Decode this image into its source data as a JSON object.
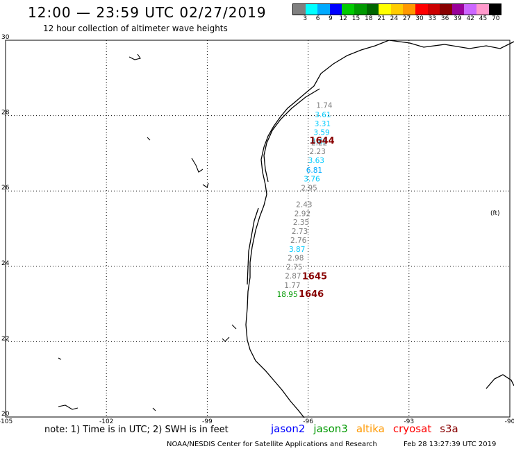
{
  "header": {
    "title": "12:00 — 23:59 UTC 02/27/2019",
    "subtitle": "12 hour collection of altimeter wave heights"
  },
  "legend": {
    "unit": "(ft)",
    "colors": [
      "#808080",
      "#00ffff",
      "#00aaff",
      "#0000ff",
      "#00cc00",
      "#009900",
      "#006600",
      "#ffff00",
      "#ffcc00",
      "#ff9900",
      "#ff0000",
      "#cc0000",
      "#880000",
      "#990099",
      "#cc66ff",
      "#ff99cc",
      "#000000"
    ],
    "labels": [
      "3",
      "6",
      "9",
      "12",
      "15",
      "18",
      "21",
      "24",
      "27",
      "30",
      "33",
      "36",
      "39",
      "42",
      "45",
      "70"
    ]
  },
  "axes": {
    "x_ticks": [
      "-105",
      "-102",
      "-99",
      "-96",
      "-93",
      "-90"
    ],
    "y_ticks": [
      "30",
      "28",
      "26",
      "24",
      "22",
      "20"
    ]
  },
  "wave_heights": [
    {
      "text": "1.74",
      "lon": -95.76,
      "lat": 28.2,
      "color": "#808080"
    },
    {
      "text": "3.61",
      "lon": -95.8,
      "lat": 27.96,
      "color": "#00ccff"
    },
    {
      "text": "3.31",
      "lon": -95.81,
      "lat": 27.72,
      "color": "#00ccff"
    },
    {
      "text": "3.59",
      "lon": -95.84,
      "lat": 27.49,
      "color": "#00ccff"
    },
    {
      "text": "4.43",
      "lon": -95.91,
      "lat": 27.25,
      "color": "#00ccff"
    },
    {
      "text": "2.22",
      "lon": -95.91,
      "lat": 27.21,
      "color": "#808080"
    },
    {
      "text": "2.23",
      "lon": -95.96,
      "lat": 26.98,
      "color": "#808080"
    },
    {
      "text": "3.63",
      "lon": -96.0,
      "lat": 26.74,
      "color": "#00ccff"
    },
    {
      "text": "6.81",
      "lon": -96.06,
      "lat": 26.48,
      "color": "#00aaff"
    },
    {
      "text": "3.76",
      "lon": -96.13,
      "lat": 26.25,
      "color": "#00ccff"
    },
    {
      "text": "2.95",
      "lon": -96.21,
      "lat": 26.01,
      "color": "#808080"
    },
    {
      "text": "2.43",
      "lon": -96.36,
      "lat": 25.57,
      "color": "#808080"
    },
    {
      "text": "2.92",
      "lon": -96.41,
      "lat": 25.33,
      "color": "#808080"
    },
    {
      "text": "2.35",
      "lon": -96.45,
      "lat": 25.1,
      "color": "#808080"
    },
    {
      "text": "2.73",
      "lon": -96.49,
      "lat": 24.86,
      "color": "#808080"
    },
    {
      "text": "2.76",
      "lon": -96.53,
      "lat": 24.62,
      "color": "#808080"
    },
    {
      "text": "3.87",
      "lon": -96.57,
      "lat": 24.38,
      "color": "#00ccff"
    },
    {
      "text": "2.98",
      "lon": -96.61,
      "lat": 24.15,
      "color": "#808080"
    },
    {
      "text": "2.75",
      "lon": -96.65,
      "lat": 23.91,
      "color": "#808080"
    },
    {
      "text": "2.87",
      "lon": -96.69,
      "lat": 23.67,
      "color": "#808080"
    },
    {
      "text": "1.77",
      "lon": -96.71,
      "lat": 23.43,
      "color": "#808080"
    },
    {
      "text": "18.95",
      "lon": -96.93,
      "lat": 23.19,
      "color": "#009900"
    }
  ],
  "pass_labels": [
    {
      "text": "1644",
      "lon": -95.96,
      "lat": 27.26,
      "color": "#880000"
    },
    {
      "text": "1645",
      "lon": -96.18,
      "lat": 23.66,
      "color": "#880000"
    },
    {
      "text": "1646",
      "lon": -96.28,
      "lat": 23.19,
      "color": "#880000"
    }
  ],
  "footer": {
    "note": "note: 1) Time is in UTC; 2) SWH is in feet",
    "satellites": [
      {
        "name": "jason2",
        "color": "#0000ff"
      },
      {
        "name": "jason3",
        "color": "#009900"
      },
      {
        "name": "altika",
        "color": "#ff9900"
      },
      {
        "name": "cryosat",
        "color": "#ff0000"
      },
      {
        "name": "s3a",
        "color": "#880000"
      }
    ],
    "credit": "NOAA/NESDIS Center for Satellite Applications and Research",
    "timestamp": "Feb 28 13:27:39 UTC 2019"
  }
}
